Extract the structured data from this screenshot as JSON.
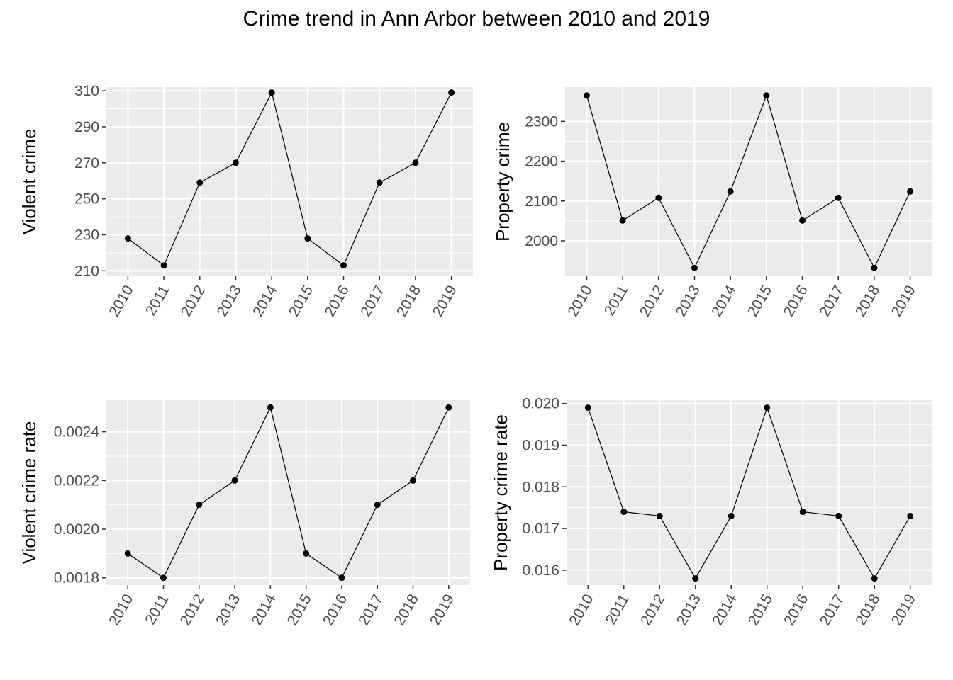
{
  "title": "Crime trend in Ann Arbor between 2010 and 2019",
  "chart_data": [
    {
      "type": "line",
      "x": [
        "2010",
        "2011",
        "2012",
        "2013",
        "2014",
        "2015",
        "2016",
        "2017",
        "2018",
        "2019"
      ],
      "values": [
        228,
        213,
        259,
        270,
        309,
        228,
        213,
        259,
        270,
        309
      ],
      "ylabel": "Violent crime",
      "ylim": [
        207,
        312
      ],
      "yticks": [
        210,
        230,
        250,
        270,
        290,
        310
      ],
      "ytick_labels": [
        "210",
        "230",
        "250",
        "270",
        "290",
        "310"
      ],
      "grid": true
    },
    {
      "type": "line",
      "x": [
        "2010",
        "2011",
        "2012",
        "2013",
        "2014",
        "2015",
        "2016",
        "2017",
        "2018",
        "2019"
      ],
      "values": [
        2365,
        2051,
        2108,
        1932,
        2124,
        2365,
        2051,
        2108,
        1932,
        2124
      ],
      "ylabel": "Property crime",
      "ylim": [
        1911,
        2386
      ],
      "yticks": [
        2000,
        2100,
        2200,
        2300
      ],
      "ytick_labels": [
        "2000",
        "2100",
        "2200",
        "2300"
      ],
      "grid": true
    },
    {
      "type": "line",
      "x": [
        "2010",
        "2011",
        "2012",
        "2013",
        "2014",
        "2015",
        "2016",
        "2017",
        "2018",
        "2019"
      ],
      "values": [
        0.0019,
        0.0018,
        0.0021,
        0.0022,
        0.0025,
        0.0019,
        0.0018,
        0.0021,
        0.0022,
        0.0025
      ],
      "ylabel": "Violent crime rate",
      "ylim": [
        0.00177,
        0.00253
      ],
      "yticks": [
        0.0018,
        0.002,
        0.0022,
        0.0024
      ],
      "ytick_labels": [
        "0.0018",
        "0.0020",
        "0.0022",
        "0.0024"
      ],
      "grid": true
    },
    {
      "type": "line",
      "x": [
        "2010",
        "2011",
        "2012",
        "2013",
        "2014",
        "2015",
        "2016",
        "2017",
        "2018",
        "2019"
      ],
      "values": [
        0.0199,
        0.0174,
        0.0173,
        0.0158,
        0.0173,
        0.0199,
        0.0174,
        0.0173,
        0.0158,
        0.0173
      ],
      "ylabel": "Property crime rate",
      "ylim": [
        0.01564,
        0.02008
      ],
      "yticks": [
        0.016,
        0.017,
        0.018,
        0.019,
        0.02
      ],
      "ytick_labels": [
        "0.016",
        "0.017",
        "0.018",
        "0.019",
        "0.020"
      ],
      "grid": true
    }
  ]
}
